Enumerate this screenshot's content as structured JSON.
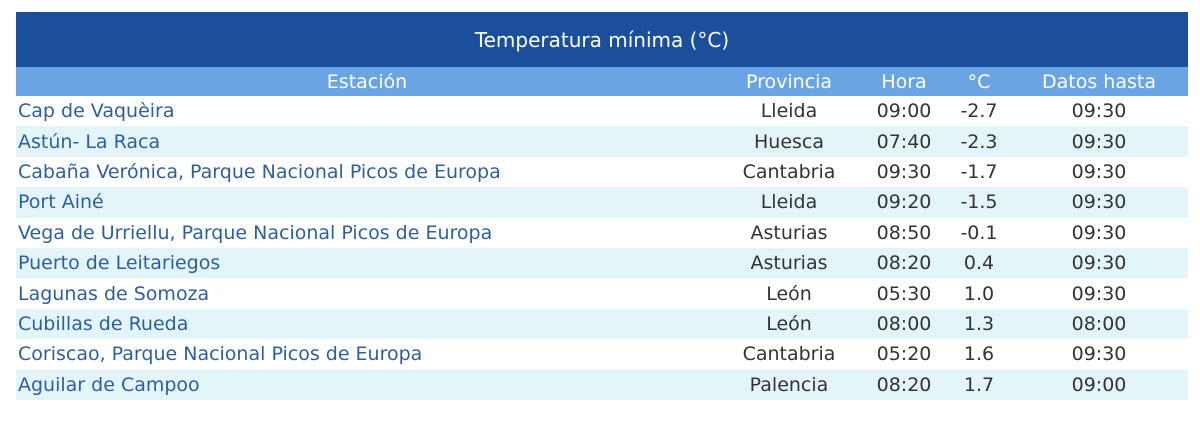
{
  "table": {
    "title": "Temperatura mínima (°C)",
    "headers": [
      "Estación",
      "Provincia",
      "Hora",
      "°C",
      "Datos hasta"
    ],
    "rows": [
      [
        "Cap de Vaquèira",
        "Lleida",
        "09:00",
        "-2.7",
        "09:30"
      ],
      [
        "Astún- La Raca",
        "Huesca",
        "07:40",
        "-2.3",
        "09:30"
      ],
      [
        "Cabaña Verónica, Parque Nacional Picos de Europa",
        "Cantabria",
        "09:30",
        "-1.7",
        "09:30"
      ],
      [
        "Port Ainé",
        "Lleida",
        "09:20",
        "-1.5",
        "09:30"
      ],
      [
        "Vega de Urriellu, Parque Nacional Picos de Europa",
        "Asturias",
        "08:50",
        "-0.1",
        "09:30"
      ],
      [
        "Puerto de Leitariegos",
        "Asturias",
        "08:20",
        "0.4",
        "09:30"
      ],
      [
        "Lagunas de Somoza",
        "León",
        "05:30",
        "1.0",
        "09:30"
      ],
      [
        "Cubillas de Rueda",
        "León",
        "08:00",
        "1.3",
        "08:00"
      ],
      [
        "Coriscao, Parque Nacional Picos de Europa",
        "Cantabria",
        "05:20",
        "1.6",
        "09:30"
      ],
      [
        "Aguilar de Campoo",
        "Palencia",
        "08:20",
        "1.7",
        "09:00"
      ]
    ]
  }
}
